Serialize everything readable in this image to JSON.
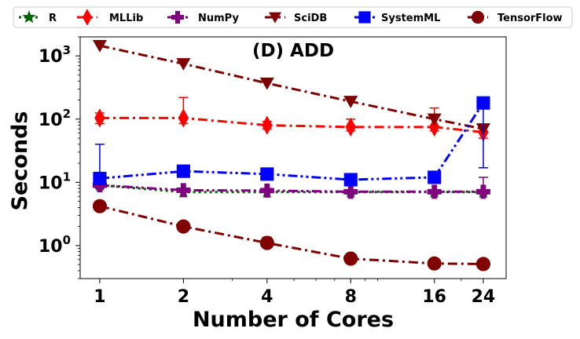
{
  "chart_data": {
    "type": "line",
    "title": "(D) ADD",
    "xlabel": "Number of Cores",
    "ylabel": "Seconds",
    "x": [
      1,
      2,
      4,
      8,
      16,
      24
    ],
    "x_tick_labels": [
      "1",
      "2",
      "4",
      "8",
      "16",
      "24"
    ],
    "x_scale": "log",
    "y_scale": "log",
    "ylim": [
      0.3,
      2000
    ],
    "y_tick_labels": [
      {
        "base": "10",
        "exp": "0",
        "value": 1
      },
      {
        "base": "10",
        "exp": "1",
        "value": 10
      },
      {
        "base": "10",
        "exp": "2",
        "value": 100
      },
      {
        "base": "10",
        "exp": "3",
        "value": 1000
      }
    ],
    "grid": false,
    "legend_position": "top",
    "series": [
      {
        "name": "R",
        "color": "#006400",
        "marker": "star",
        "linestyle": "dotted",
        "values": [
          9,
          7,
          7,
          7,
          7,
          7
        ]
      },
      {
        "name": "MLLib",
        "color": "#ff0000",
        "marker": "diamond",
        "linestyle": "dashdot",
        "values": [
          104,
          104,
          80,
          75,
          75,
          62
        ],
        "err_low": [
          85,
          85,
          70,
          65,
          65,
          50
        ],
        "err_high": [
          125,
          220,
          92,
          100,
          150,
          75
        ]
      },
      {
        "name": "NumPy",
        "color": "#800080",
        "marker": "plus",
        "linestyle": "dashdotdot",
        "values": [
          9,
          7.5,
          7.4,
          7.1,
          7.1,
          7.1
        ],
        "err_low": [
          8,
          7,
          7,
          6.5,
          6.5,
          6.5
        ],
        "err_high": [
          10,
          8,
          8,
          7.5,
          7.5,
          12
        ]
      },
      {
        "name": "SciDB",
        "color": "#800000",
        "marker": "triangle-down",
        "linestyle": "dashdot",
        "values": [
          1450,
          750,
          370,
          190,
          100,
          70
        ]
      },
      {
        "name": "SystemML",
        "color": "#0000ff",
        "marker": "square",
        "linestyle": "dashdotdot",
        "values": [
          11.5,
          15,
          13.5,
          11,
          12,
          180
        ],
        "err_low": [
          10,
          13,
          12,
          9.5,
          10.5,
          17
        ],
        "err_high": [
          40,
          17,
          15,
          12.5,
          13.5,
          200
        ]
      },
      {
        "name": "TensorFlow",
        "color": "#800000",
        "marker": "circle",
        "linestyle": "dashdot",
        "values": [
          4.2,
          2.0,
          1.1,
          0.62,
          0.52,
          0.51
        ],
        "err_low": [
          3.9,
          1.9,
          1.0,
          0.6,
          0.5,
          0.49
        ],
        "err_high": [
          4.5,
          2.1,
          1.35,
          0.65,
          0.55,
          0.53
        ]
      }
    ]
  }
}
